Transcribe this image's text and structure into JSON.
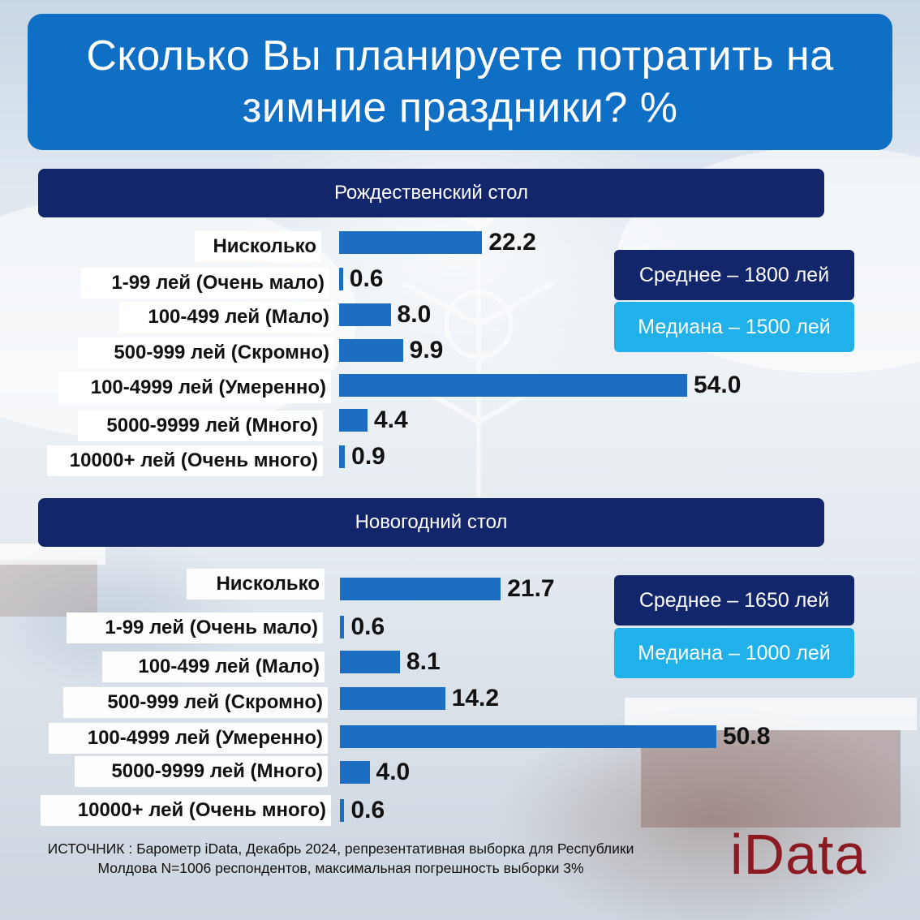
{
  "title": "Сколько Вы планируете потратить на зимние праздники? %",
  "colors": {
    "title_bg": "#0f6fc4",
    "section_bg": "#14266b",
    "bar": "#1b6ec2",
    "mean_bg": "#14266b",
    "median_bg": "#20b0ea",
    "logo": "#8b1a22"
  },
  "chart_data": [
    {
      "type": "bar",
      "orientation": "horizontal",
      "title": "Рождественский стол",
      "categories": [
        "Нисколько",
        "1-99 лей (Очень мало)",
        "100-499 лей (Мало)",
        "500-999 лей (Скромно)",
        "100-4999 лей (Умеренно)",
        "5000-9999 лей (Много)",
        "10000+ лей (Очень много)"
      ],
      "values": [
        22.2,
        0.6,
        8.0,
        9.9,
        54.0,
        4.4,
        0.9
      ],
      "value_labels": [
        "22.2",
        "0.6",
        "8.0",
        "9.9",
        "54.0",
        "4.4",
        "0.9"
      ],
      "annotations": [
        "Среднее – 1800 лей",
        "Медиана – 1500 лей"
      ],
      "grid": false
    },
    {
      "type": "bar",
      "orientation": "horizontal",
      "title": "Новогодний стол",
      "categories": [
        "Нисколько",
        "1-99 лей (Очень мало)",
        "100-499 лей (Мало)",
        "500-999 лей (Скромно)",
        "100-4999 лей (Умеренно)",
        "5000-9999 лей (Много)",
        "10000+ лей (Очень много)"
      ],
      "values": [
        21.7,
        0.6,
        8.1,
        14.2,
        50.8,
        4.0,
        0.6
      ],
      "value_labels": [
        "21.7",
        "0.6",
        "8.1",
        "14.2",
        "50.8",
        "4.0",
        "0.6"
      ],
      "annotations": [
        "Среднее – 1650 лей",
        "Медиана – 1000 лей"
      ],
      "grid": false
    }
  ],
  "source": "ИСТОЧНИК : Барометр iData, Декабрь 2024, репрезентативная выборка для Республики Молдова N=1006 респондентов, максимальная погрешность выборки 3%",
  "logo": "iData"
}
